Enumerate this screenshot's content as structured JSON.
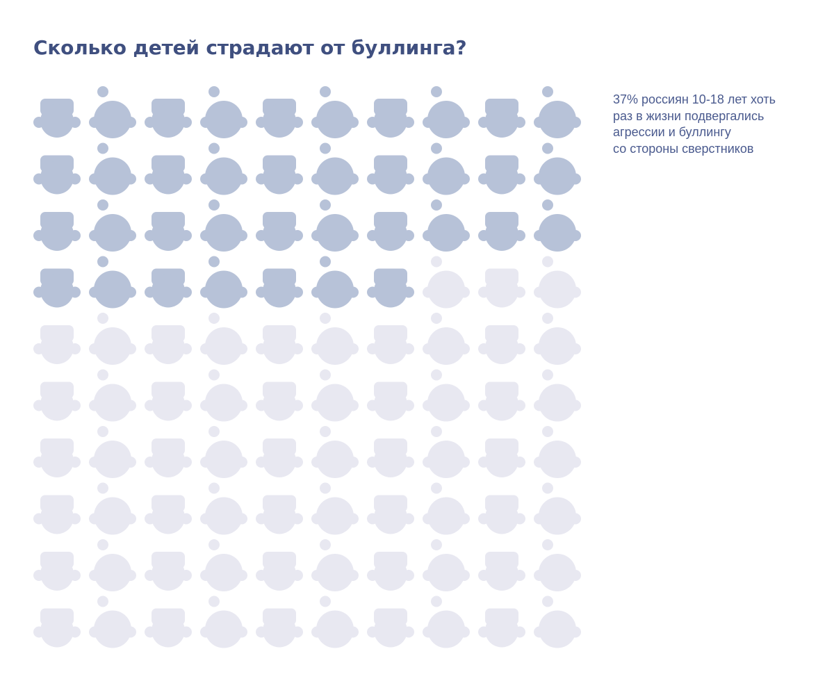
{
  "title": "Сколько детей страдают от буллинга?",
  "annotation": "37% россиян 10-18 лет хоть\nраз в жизни подвергались\nагрессии и буллингу\nсо стороны сверстников",
  "colors": {
    "title": "#3f4f7f",
    "annotation": "#4a5a8e",
    "highlighted": "#b7c2d8",
    "muted": "#e8e8f1"
  },
  "chart_data": {
    "type": "pictogram",
    "total": 100,
    "highlighted": 37,
    "rows": 10,
    "columns": 10,
    "icons": [
      "boy-icon",
      "girl-icon"
    ],
    "title": "Сколько детей страдают от буллинга?"
  }
}
